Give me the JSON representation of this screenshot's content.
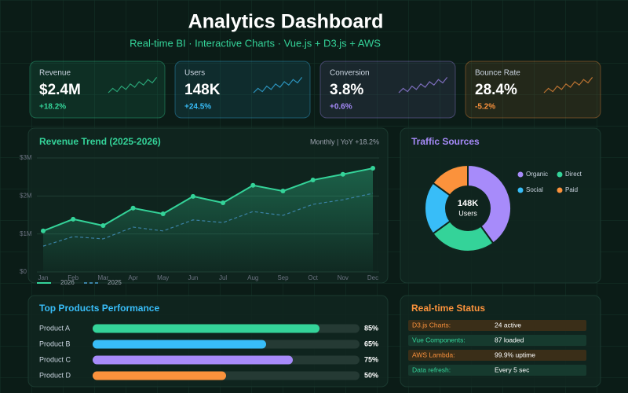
{
  "header": {
    "title": "Analytics Dashboard",
    "subtitle": "Real-time BI · Interactive Charts · Vue.js + D3.js + AWS"
  },
  "kpis": [
    {
      "label": "Revenue",
      "value": "$2.4M",
      "change": "+18.2%",
      "color": "#34d399"
    },
    {
      "label": "Users",
      "value": "148K",
      "change": "+24.5%",
      "color": "#38bdf8"
    },
    {
      "label": "Conversion",
      "value": "3.8%",
      "change": "+0.6%",
      "color": "#a78bfa"
    },
    {
      "label": "Bounce Rate",
      "value": "28.4%",
      "change": "-5.2%",
      "color": "#fb923c"
    }
  ],
  "chart_data": [
    {
      "type": "line",
      "title": "Revenue Trend (2025-2026)",
      "subtitle": "Monthly  |  YoY +18.2%",
      "categories": [
        "Jan",
        "Feb",
        "Mar",
        "Apr",
        "May",
        "Jun",
        "Jul",
        "Aug",
        "Sep",
        "Oct",
        "Nov",
        "Dec"
      ],
      "series": [
        {
          "name": "2026",
          "color": "#34d399",
          "values": [
            1.08,
            1.39,
            1.22,
            1.68,
            1.53,
            1.99,
            1.82,
            2.28,
            2.13,
            2.42,
            2.57,
            2.73
          ]
        },
        {
          "name": "2025",
          "color": "#3b82a6",
          "dashed": true,
          "values": [
            0.68,
            0.93,
            0.87,
            1.18,
            1.08,
            1.37,
            1.3,
            1.59,
            1.49,
            1.78,
            1.9,
            2.07
          ]
        }
      ],
      "ylim": [
        0,
        3
      ],
      "yticks": [
        {
          "value": 0,
          "label": "$0"
        },
        {
          "value": 1,
          "label": "$1M"
        },
        {
          "value": 2,
          "label": "$2M"
        },
        {
          "value": 3,
          "label": "$3M"
        }
      ],
      "grid": true
    },
    {
      "type": "pie",
      "title": "Traffic Sources",
      "center_label": "148K",
      "center_sublabel": "Users",
      "categories": [
        "Organic",
        "Direct",
        "Social",
        "Paid"
      ],
      "values": [
        40,
        25,
        20,
        15
      ],
      "colors": [
        "#a78bfa",
        "#34d399",
        "#38bdf8",
        "#fb923c"
      ]
    },
    {
      "type": "hbar",
      "title": "Top Products Performance",
      "categories": [
        "Product A",
        "Product B",
        "Product C",
        "Product D"
      ],
      "values": [
        85,
        65,
        75,
        50
      ],
      "value_labels": [
        "85%",
        "65%",
        "75%",
        "50%"
      ],
      "xlim": [
        0,
        100
      ],
      "colors": [
        "#34d399",
        "#38bdf8",
        "#a78bfa",
        "#fb923c"
      ]
    }
  ],
  "status": {
    "title": "Real-time Status",
    "rows": [
      [
        "D3.js Charts:",
        "24 active"
      ],
      [
        "Vue Components:",
        "87 loaded"
      ],
      [
        "AWS Lambda:",
        "99.9% uptime"
      ],
      [
        "Data refresh:",
        "Every 5 sec"
      ]
    ]
  }
}
